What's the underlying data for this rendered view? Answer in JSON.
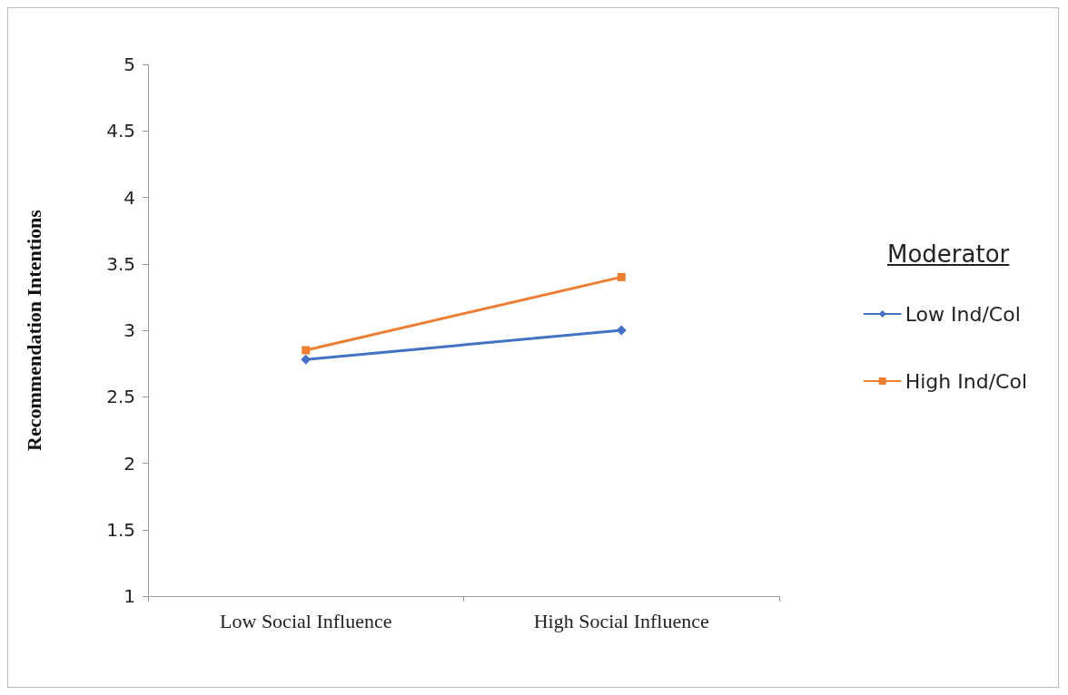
{
  "chart_data": {
    "type": "line",
    "ylabel": "Recommendation Intentions",
    "legend_title": "Moderator",
    "categories": [
      "Low Social Influence",
      "High Social Influence"
    ],
    "series": [
      {
        "name": "Low Ind/Col",
        "color": "#4472c4",
        "marker": "diamond",
        "values": [
          2.78,
          3.0
        ]
      },
      {
        "name": "High Ind/Col",
        "color": "#ed7d31",
        "marker": "square",
        "values": [
          2.85,
          3.4
        ]
      }
    ],
    "ylim": [
      1,
      5
    ],
    "yticks": [
      1,
      1.5,
      2,
      2.5,
      3,
      3.5,
      4,
      4.5,
      5
    ],
    "grid": false,
    "legend": "right",
    "line_style": "solid"
  }
}
